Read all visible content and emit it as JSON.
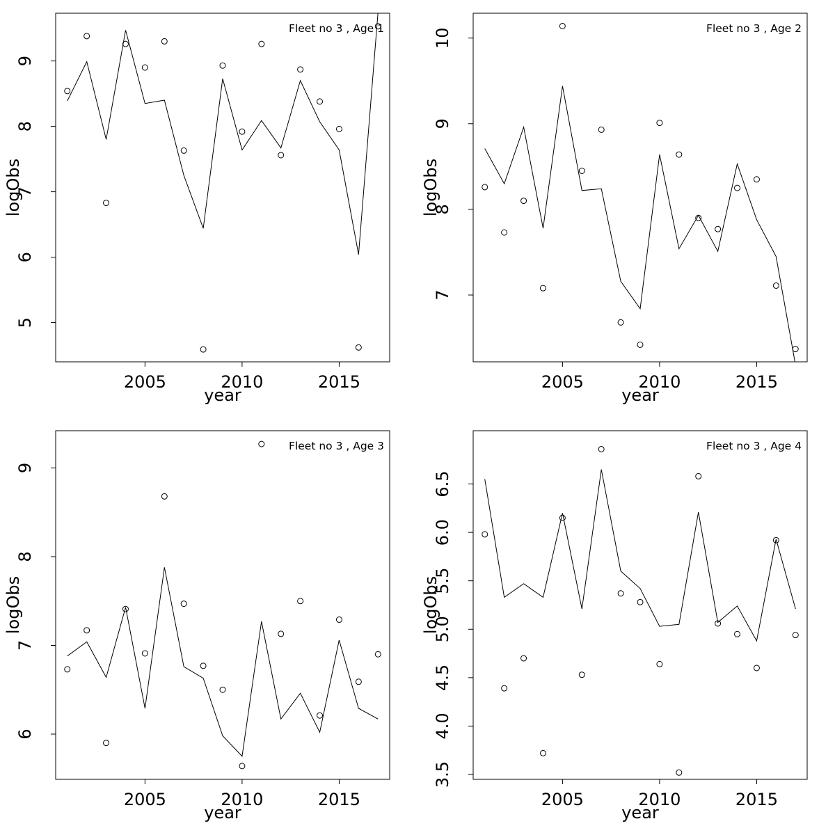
{
  "chart_data": [
    {
      "type": "line",
      "legend": "Fleet no 3 , Age 1",
      "legend_position": "top-right",
      "xlabel": "year",
      "ylabel": "logObs",
      "xlim": [
        2000.4,
        2017.6
      ],
      "ylim": [
        4.4,
        9.73
      ],
      "x_ticks": [
        2005,
        2010,
        2015
      ],
      "y_ticks": [
        5,
        6,
        7,
        8,
        9
      ],
      "grid": false,
      "x": [
        2001,
        2002,
        2003,
        2004,
        2005,
        2006,
        2007,
        2008,
        2009,
        2010,
        2011,
        2012,
        2013,
        2014,
        2015,
        2016,
        2017
      ],
      "series": [
        {
          "kind": "points",
          "values": [
            8.54,
            9.38,
            6.83,
            9.26,
            8.9,
            9.3,
            7.63,
            4.59,
            8.93,
            7.92,
            9.26,
            7.56,
            8.87,
            8.38,
            7.96,
            4.62,
            9.53
          ]
        },
        {
          "kind": "line",
          "values": [
            8.39,
            8.99,
            7.8,
            9.47,
            8.35,
            8.4,
            7.25,
            6.44,
            8.73,
            7.64,
            8.09,
            7.67,
            8.7,
            8.07,
            7.64,
            6.04,
            9.75
          ]
        }
      ]
    },
    {
      "type": "line",
      "legend": "Fleet no 3 , Age 2",
      "legend_position": "top-right",
      "xlabel": "year",
      "ylabel": "logObs",
      "xlim": [
        2000.4,
        2017.6
      ],
      "ylim": [
        6.22,
        10.29
      ],
      "x_ticks": [
        2005,
        2010,
        2015
      ],
      "y_ticks": [
        7,
        8,
        9,
        10
      ],
      "grid": false,
      "x": [
        2001,
        2002,
        2003,
        2004,
        2005,
        2006,
        2007,
        2008,
        2009,
        2010,
        2011,
        2012,
        2013,
        2014,
        2015,
        2016,
        2017
      ],
      "series": [
        {
          "kind": "points",
          "values": [
            8.26,
            7.73,
            8.1,
            7.08,
            10.14,
            8.45,
            8.93,
            6.68,
            6.42,
            9.01,
            8.64,
            7.9,
            7.77,
            8.25,
            8.35,
            7.11,
            6.37
          ]
        },
        {
          "kind": "line",
          "values": [
            8.71,
            8.3,
            8.96,
            7.78,
            9.44,
            8.22,
            8.24,
            7.16,
            6.84,
            8.64,
            7.54,
            7.93,
            7.51,
            8.53,
            7.88,
            7.45,
            6.18
          ]
        }
      ]
    },
    {
      "type": "line",
      "legend": "Fleet no 3 , Age 3",
      "legend_position": "top-right",
      "xlabel": "year",
      "ylabel": "logObs",
      "xlim": [
        2000.4,
        2017.6
      ],
      "ylim": [
        5.49,
        9.42
      ],
      "x_ticks": [
        2005,
        2010,
        2015
      ],
      "y_ticks": [
        6,
        7,
        8,
        9
      ],
      "grid": false,
      "x": [
        2001,
        2002,
        2003,
        2004,
        2005,
        2006,
        2007,
        2008,
        2009,
        2010,
        2011,
        2012,
        2013,
        2014,
        2015,
        2016,
        2017
      ],
      "series": [
        {
          "kind": "points",
          "values": [
            6.73,
            7.17,
            5.9,
            7.41,
            6.91,
            8.68,
            7.47,
            6.77,
            6.5,
            5.64,
            9.27,
            7.13,
            7.5,
            6.21,
            7.29,
            6.59,
            6.9
          ]
        },
        {
          "kind": "line",
          "values": [
            6.88,
            7.04,
            6.64,
            7.43,
            6.29,
            7.88,
            6.76,
            6.63,
            5.98,
            5.75,
            7.27,
            6.17,
            6.46,
            6.02,
            7.06,
            6.29,
            6.17
          ]
        }
      ]
    },
    {
      "type": "line",
      "legend": "Fleet no 3 , Age 4",
      "legend_position": "top-right",
      "xlabel": "year",
      "ylabel": "logObs",
      "xlim": [
        2000.4,
        2017.6
      ],
      "ylim": [
        3.45,
        7.05
      ],
      "x_ticks": [
        2005,
        2010,
        2015
      ],
      "y_ticks": [
        3.5,
        4.0,
        4.5,
        5.0,
        5.5,
        6.0,
        6.5
      ],
      "y_tick_labels": [
        "3.5",
        "4.0",
        "4.5",
        "5.0",
        "5.5",
        "6.0",
        "6.5"
      ],
      "grid": false,
      "x": [
        2001,
        2002,
        2003,
        2004,
        2005,
        2006,
        2007,
        2008,
        2009,
        2010,
        2011,
        2012,
        2013,
        2014,
        2015,
        2016,
        2017
      ],
      "series": [
        {
          "kind": "points",
          "values": [
            5.98,
            4.39,
            4.7,
            3.72,
            6.15,
            4.53,
            6.86,
            5.37,
            5.28,
            4.64,
            3.52,
            6.58,
            5.06,
            4.95,
            4.6,
            5.92,
            4.94
          ]
        },
        {
          "kind": "line",
          "values": [
            6.55,
            5.33,
            5.47,
            5.33,
            6.2,
            5.21,
            6.65,
            5.6,
            5.42,
            5.03,
            5.05,
            6.21,
            5.07,
            5.24,
            4.88,
            5.93,
            5.21
          ]
        }
      ]
    }
  ]
}
